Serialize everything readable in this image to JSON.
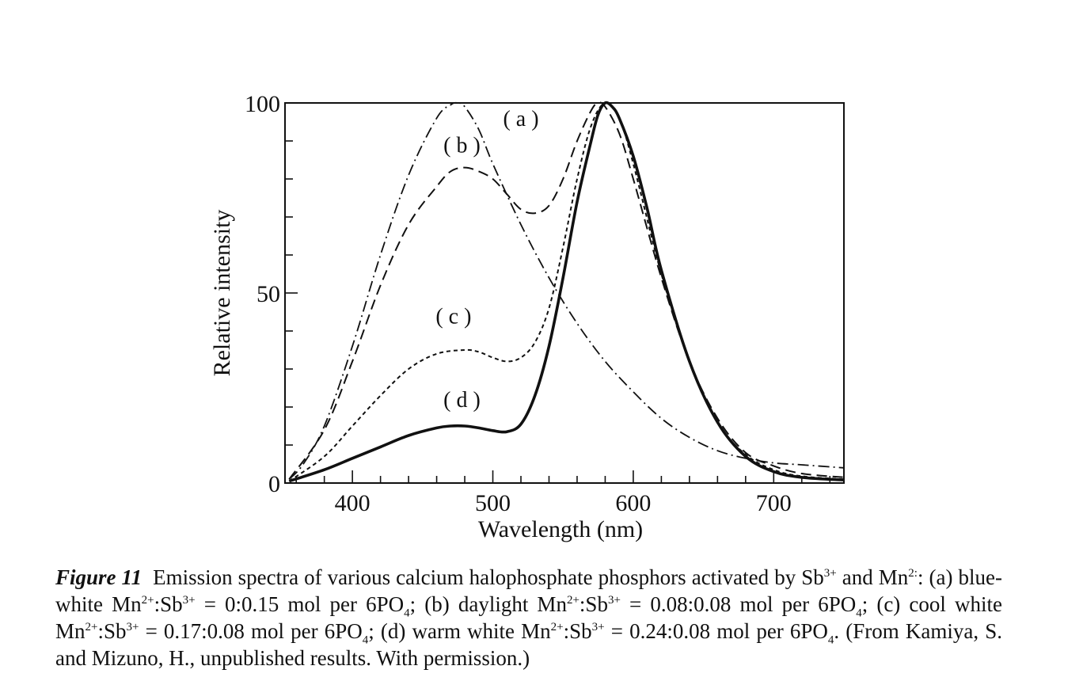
{
  "chart_data": {
    "type": "line",
    "xlabel": "Wavelength (nm)",
    "ylabel": "Relative intensity",
    "xlim": [
      352,
      750
    ],
    "ylim": [
      0,
      100
    ],
    "xticks": [
      400,
      500,
      600,
      700
    ],
    "yticks": [
      0,
      50,
      100
    ],
    "grid": false,
    "legend": "none",
    "series": [
      {
        "name": "(a)",
        "style": "dashdot",
        "x": [
          355,
          365,
          380,
          400,
          420,
          440,
          460,
          470,
          475,
          480,
          490,
          500,
          520,
          540,
          560,
          580,
          600,
          620,
          640,
          660,
          680,
          700,
          720,
          750
        ],
        "y": [
          1,
          5,
          15,
          36,
          60,
          81,
          96,
          99.5,
          100,
          99,
          93,
          84,
          68,
          54,
          42,
          32,
          24,
          17,
          12,
          8.5,
          6.5,
          5.3,
          4.8,
          4
        ]
      },
      {
        "name": "(b)",
        "style": "dashed",
        "x": [
          355,
          380,
          400,
          420,
          440,
          460,
          470,
          480,
          490,
          500,
          510,
          520,
          530,
          540,
          550,
          560,
          570,
          575,
          580,
          590,
          600,
          620,
          640,
          660,
          680,
          700,
          720,
          750
        ],
        "y": [
          1,
          14,
          32,
          52,
          68,
          78,
          82,
          83,
          82,
          80,
          76,
          72,
          71,
          73,
          80,
          90,
          98,
          100,
          99,
          92,
          80,
          54,
          32,
          17,
          8,
          4.5,
          2.5,
          1.5
        ]
      },
      {
        "name": "(c)",
        "style": "dotted",
        "x": [
          355,
          380,
          400,
          420,
          440,
          460,
          480,
          490,
          500,
          510,
          520,
          530,
          540,
          550,
          560,
          570,
          580,
          590,
          600,
          620,
          640,
          660,
          680,
          700,
          720,
          750
        ],
        "y": [
          0.5,
          7,
          15,
          23,
          30,
          34,
          35,
          34.5,
          33,
          32,
          33,
          37,
          46,
          62,
          80,
          94,
          100,
          96,
          84,
          55,
          32,
          16,
          7.5,
          3.5,
          1.8,
          1
        ]
      },
      {
        "name": "(d)",
        "style": "solid",
        "x": [
          355,
          380,
          400,
          420,
          440,
          460,
          470,
          480,
          490,
          500,
          510,
          520,
          530,
          540,
          550,
          560,
          570,
          575,
          580,
          585,
          590,
          600,
          610,
          620,
          640,
          660,
          680,
          700,
          720,
          750
        ],
        "y": [
          0.5,
          3.5,
          6.5,
          9.5,
          12.5,
          14.5,
          15,
          15,
          14.5,
          13.8,
          13.5,
          15.5,
          23,
          36,
          54,
          74,
          90,
          97,
          100,
          99,
          96,
          86,
          72,
          56,
          32,
          16,
          7,
          3,
          1.5,
          0.8
        ]
      }
    ],
    "annotations": [
      "( a )",
      "( b )",
      "( c )",
      "( d )"
    ]
  },
  "caption": {
    "figure_label": "Figure 11",
    "text_1": "Emission spectra of various calcium halophosphate phosphors activated by Sb",
    "text_1_sup": "3+",
    "text_2": " and Mn",
    "text_2_sup": "2:",
    "text_3": ": (a) blue-white Mn",
    "text_3_sup1": "2+",
    "text_3_mid": ":Sb",
    "text_3_sup2": "3+",
    "text_3_end": " = 0:0.15 mol per 6PO",
    "text_3_sub": "4",
    "text_4": "; (b) daylight Mn",
    "text_4_sup1": "2+",
    "text_4_mid": ":Sb",
    "text_4_sup2": "3+",
    "text_4_end": " = 0.08:0.08 mol per 6PO",
    "text_4_sub": "4",
    "text_5": "; (c) cool white Mn",
    "text_5_sup1": "2+",
    "text_5_mid": ":Sb",
    "text_5_sup2": "3+",
    "text_5_end": " = 0.17:0.08 mol per 6PO",
    "text_5_sub": "4",
    "text_6": "; (d) warm white Mn",
    "text_6_sup1": "2+",
    "text_6_mid": ":Sb",
    "text_6_sup2": "3+",
    "text_6_end": " = 0.24:0.08 mol per 6PO",
    "text_6_sub": "4",
    "text_7": ". (From Kamiya, S. and Mizuno, H., unpublished results. With permission.)"
  }
}
